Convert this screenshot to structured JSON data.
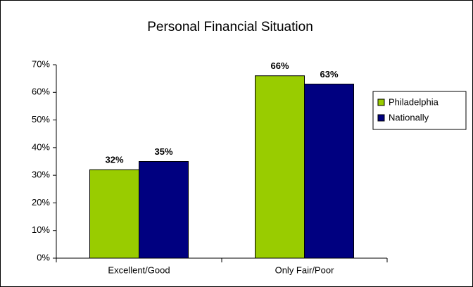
{
  "chart_data": {
    "type": "bar",
    "title": "Personal Financial Situation",
    "categories": [
      "Excellent/Good",
      "Only Fair/Poor"
    ],
    "series": [
      {
        "name": "Philadelphia",
        "color": "#99cc00",
        "values": [
          32,
          66
        ],
        "value_labels": [
          "32%",
          "66%"
        ]
      },
      {
        "name": "Nationally",
        "color": "#000080",
        "values": [
          35,
          63
        ],
        "value_labels": [
          "35%",
          "63%"
        ]
      }
    ],
    "ylim": [
      0,
      70
    ],
    "yticks": [
      {
        "value": 0,
        "label": "0%"
      },
      {
        "value": 10,
        "label": "10%"
      },
      {
        "value": 20,
        "label": "20%"
      },
      {
        "value": 30,
        "label": "30%"
      },
      {
        "value": 40,
        "label": "40%"
      },
      {
        "value": 50,
        "label": "50%"
      },
      {
        "value": 60,
        "label": "60%"
      },
      {
        "value": 70,
        "label": "70%"
      }
    ],
    "grid": false,
    "legend": "right"
  }
}
